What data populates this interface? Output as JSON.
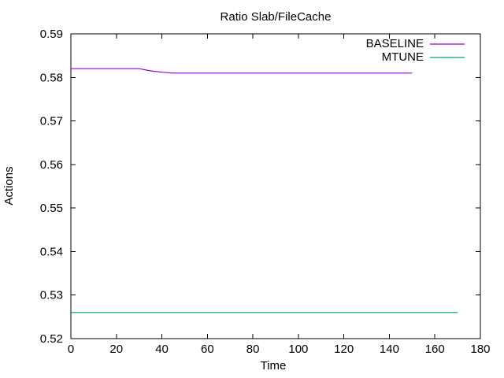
{
  "canvas": {
    "background": "#ffffff",
    "text_color": "#000000",
    "axis_color": "#000000"
  },
  "chart_data": {
    "type": "line",
    "title": "Ratio Slab/FileCache",
    "xlabel": "Time",
    "ylabel": "Actions",
    "xlim": [
      0,
      180
    ],
    "ylim": [
      0.52,
      0.59
    ],
    "xticks": [
      0,
      20,
      40,
      60,
      80,
      100,
      120,
      140,
      160,
      180
    ],
    "yticks": [
      0.52,
      0.53,
      0.54,
      0.55,
      0.56,
      0.57,
      0.58,
      0.59
    ],
    "grid": false,
    "legend_position": "top-right-inside",
    "series": [
      {
        "name": "BASELINE",
        "color": "#9400d3",
        "points": [
          [
            0,
            0.582
          ],
          [
            10,
            0.582
          ],
          [
            20,
            0.582
          ],
          [
            30,
            0.582
          ],
          [
            35,
            0.5815
          ],
          [
            40,
            0.5812
          ],
          [
            45,
            0.581
          ],
          [
            60,
            0.581
          ],
          [
            80,
            0.581
          ],
          [
            100,
            0.581
          ],
          [
            120,
            0.581
          ],
          [
            140,
            0.581
          ],
          [
            150,
            0.581
          ]
        ]
      },
      {
        "name": "MTUNE",
        "color": "#009e73",
        "points": [
          [
            0,
            0.526
          ],
          [
            20,
            0.526
          ],
          [
            40,
            0.526
          ],
          [
            60,
            0.526
          ],
          [
            80,
            0.526
          ],
          [
            100,
            0.526
          ],
          [
            120,
            0.526
          ],
          [
            140,
            0.526
          ],
          [
            160,
            0.526
          ],
          [
            170,
            0.526
          ]
        ]
      }
    ]
  }
}
